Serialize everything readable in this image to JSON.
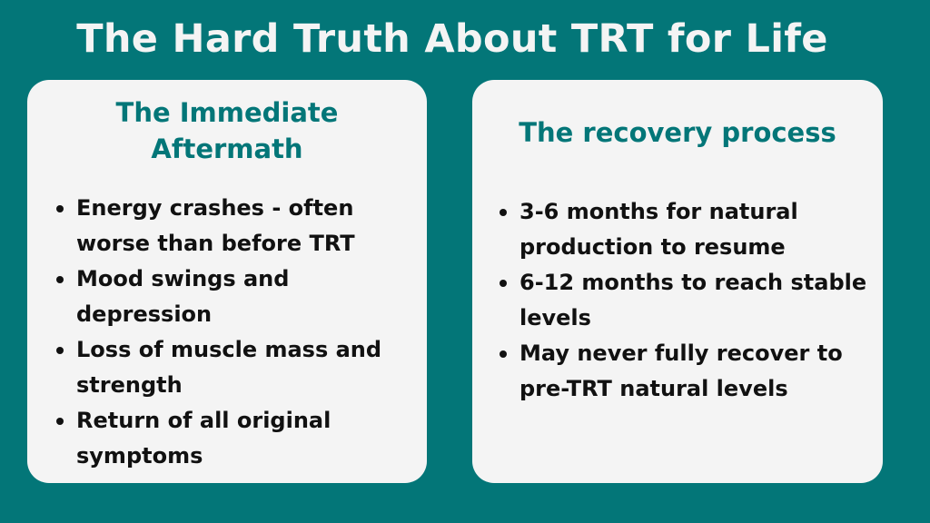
{
  "title": "The Hard Truth About TRT for Life",
  "colors": {
    "background": "#037678",
    "card": "#f4f4f4",
    "heading": "#037678"
  },
  "cards": [
    {
      "heading": "The Immediate Aftermath",
      "items": [
        "Energy crashes - often worse than before TRT",
        "Mood swings and depression",
        "Loss of muscle mass and strength",
        "Return of all original symptoms"
      ]
    },
    {
      "heading": "The recovery process",
      "items": [
        "3-6 months for natural production to resume",
        "6-12 months to reach stable levels",
        "May never fully recover to pre-TRT natural levels"
      ]
    }
  ]
}
